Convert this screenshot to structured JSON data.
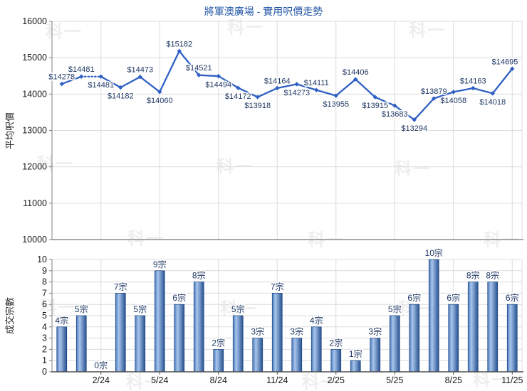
{
  "title": "將軍澳廣場 - 實用呎價走勢",
  "watermark": {
    "text": "科一"
  },
  "colors": {
    "title_text": "#2356a8",
    "line": "#3060c4",
    "data_label": "#1f3864",
    "label_halo": "#ffffff",
    "bar_gradient_left": "#4a76b8",
    "bar_gradient_light": "#a8c6ec",
    "bar_gradient_right": "#26508f",
    "bar_edge": "#1d4685",
    "grid": "#dcdcdc",
    "axis_light": "#a8a8a8",
    "axis_left": "#808080",
    "axis_dark": "#4d4d4d",
    "tick_text": "#1a1a1a"
  },
  "chart_data": [
    {
      "id": "price",
      "type": "line",
      "title": "將軍澳廣場 - 實用呎價走勢",
      "ylabel": "平均呎價",
      "ylim": [
        10000,
        16000
      ],
      "yticks": [
        "10000",
        "11000",
        "12000",
        "13000",
        "14000",
        "15000",
        "16000"
      ],
      "grid": true,
      "legend": "none",
      "xticks": [
        "2/24",
        "5/24",
        "8/24",
        "11/24",
        "2/25",
        "5/25",
        "8/25",
        "11/25"
      ],
      "xtick_slots": [
        3,
        6,
        9,
        12,
        15,
        18,
        21,
        24
      ],
      "values": [
        14278,
        14481,
        14481,
        14182,
        14473,
        14060,
        15182,
        14521,
        14494,
        14172,
        13918,
        14164,
        14273,
        14111,
        13955,
        14406,
        13915,
        13683,
        13294,
        13879,
        14058,
        14163,
        14018,
        14695
      ],
      "point_labels": [
        "$14278",
        "$14481",
        "$14481",
        "$14182",
        "$14473",
        "$14060",
        "$15182",
        "$14521",
        "$14494",
        "$14172",
        "$13918",
        "$14164",
        "$14273",
        "$14111",
        "$13955",
        "$14406",
        "$13915",
        "$13683",
        "$13294",
        "$13879",
        "$14058",
        "$14163",
        "$14018",
        "$14695"
      ],
      "label_positions": [
        "above",
        "above",
        "below",
        "below",
        "above",
        "below",
        "above",
        "above",
        "below",
        "below",
        "below",
        "above",
        "below",
        "above",
        "below",
        "above",
        "below",
        "below",
        "below",
        "above",
        "below",
        "above",
        "below",
        "above"
      ],
      "dotted_segment": [
        2,
        3
      ],
      "dotted_note": "segment between the two $14481 points is dotted (0-transaction month)"
    },
    {
      "id": "volume",
      "type": "bar",
      "ylabel": "成交宗數",
      "ylim": [
        0,
        10
      ],
      "yticks": [
        "0",
        "1",
        "2",
        "3",
        "4",
        "5",
        "6",
        "7",
        "8",
        "9",
        "10"
      ],
      "grid": true,
      "legend": "none",
      "xticks": [
        "2/24",
        "5/24",
        "8/24",
        "11/24",
        "2/25",
        "5/25",
        "8/25",
        "11/25"
      ],
      "xtick_slots": [
        3,
        6,
        9,
        12,
        15,
        18,
        21,
        24
      ],
      "values": [
        4,
        5,
        0,
        7,
        5,
        9,
        6,
        8,
        2,
        5,
        3,
        7,
        3,
        4,
        2,
        1,
        3,
        5,
        6,
        10,
        6,
        8,
        8,
        6
      ],
      "bar_labels": [
        "4宗",
        "5宗",
        "0宗",
        "7宗",
        "5宗",
        "9宗",
        "6宗",
        "8宗",
        "2宗",
        "5宗",
        "3宗",
        "7宗",
        "3宗",
        "4宗",
        "2宗",
        "1宗",
        "3宗",
        "5宗",
        "6宗",
        "10宗",
        "6宗",
        "8宗",
        "8宗",
        "6宗"
      ]
    }
  ]
}
